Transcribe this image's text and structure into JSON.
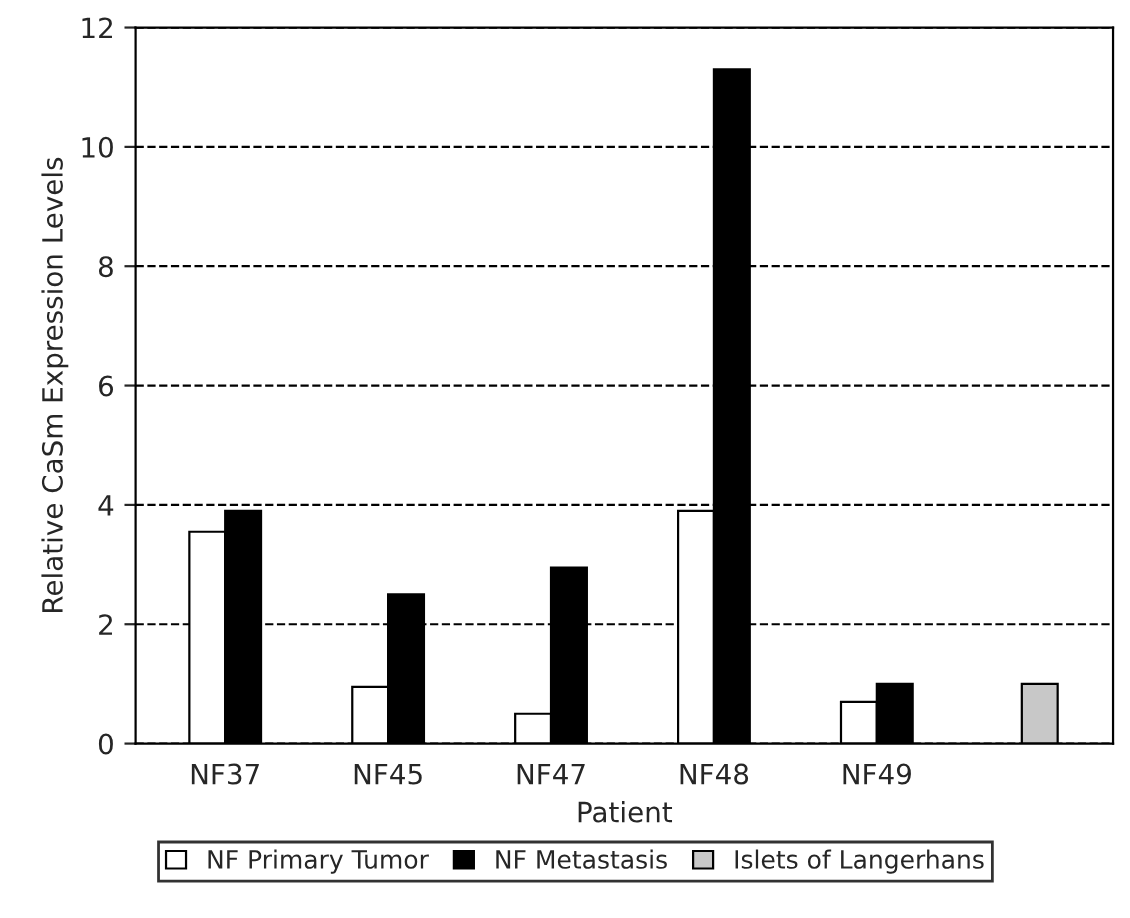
{
  "chart_data": {
    "type": "bar",
    "xlabel": "Patient",
    "ylabel": "Relative CaSm Expression Levels",
    "categories": [
      "NF37",
      "NF45",
      "NF47",
      "NF48",
      "NF49",
      null
    ],
    "series": [
      {
        "name": "NF Primary Tumor",
        "color": "#ffffff",
        "values": [
          3.55,
          0.95,
          0.5,
          3.9,
          0.7,
          null
        ]
      },
      {
        "name": "NF Metastasis",
        "color": "#000000",
        "values": [
          3.9,
          2.5,
          2.95,
          11.3,
          1.0,
          null
        ]
      },
      {
        "name": "Islets of Langerhans",
        "color": "#c8c8c8",
        "values": [
          null,
          null,
          null,
          null,
          null,
          1.0
        ]
      }
    ],
    "ylim": [
      0,
      12
    ],
    "yticks": [
      0,
      2,
      4,
      6,
      8,
      10,
      12
    ],
    "grid": "y",
    "legend": "bottom"
  }
}
